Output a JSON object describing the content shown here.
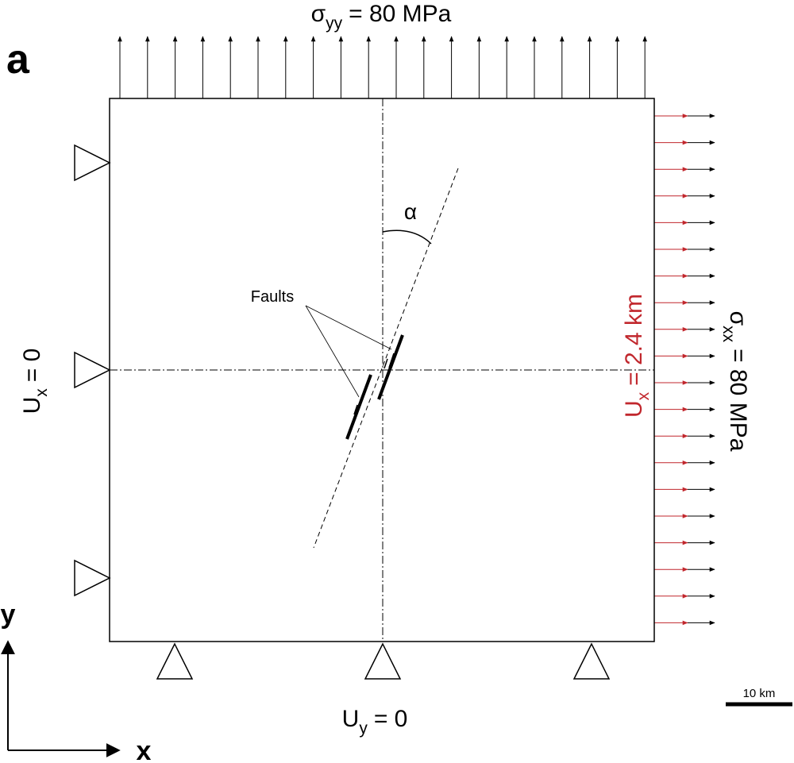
{
  "panel_label": "a",
  "top_load": {
    "symbol": "σ",
    "subscript": "yy",
    "text": "= 80 MPa"
  },
  "left_bc": {
    "symbol": "U",
    "subscript": "x",
    "text": "= 0"
  },
  "bottom_bc": {
    "symbol": "U",
    "subscript": "y",
    "text": "= 0"
  },
  "right_displacement": {
    "symbol": "U",
    "subscript": "x",
    "text": "= 2.4 km"
  },
  "right_load": {
    "symbol": "σ",
    "subscript": "xx",
    "text": "= 80 MPa"
  },
  "angle_label": "α",
  "faults_label": "Faults",
  "scale_bar": "10 km",
  "axes": {
    "y": "y",
    "x": "x"
  }
}
